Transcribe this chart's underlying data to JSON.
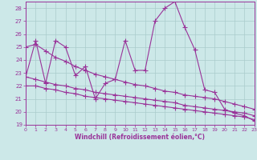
{
  "xlabel": "Windchill (Refroidissement éolien,°C)",
  "background_color": "#cce8e8",
  "grid_color": "#aacccc",
  "line_color": "#993399",
  "xlim": [
    0,
    23
  ],
  "ylim": [
    19,
    28.5
  ],
  "yticks": [
    19,
    20,
    21,
    22,
    23,
    24,
    25,
    26,
    27,
    28
  ],
  "xticks": [
    0,
    1,
    2,
    3,
    4,
    5,
    6,
    7,
    8,
    9,
    10,
    11,
    12,
    13,
    14,
    15,
    16,
    17,
    18,
    19,
    20,
    21,
    22,
    23
  ],
  "line1_x": [
    0,
    1,
    2,
    3,
    4,
    5,
    6,
    7,
    8,
    9,
    10,
    11,
    12,
    13,
    14,
    15,
    16,
    17,
    18,
    19,
    20,
    21,
    22,
    23
  ],
  "line1_y": [
    22.7,
    25.5,
    22.2,
    25.5,
    25.0,
    22.8,
    23.5,
    21.0,
    22.2,
    22.5,
    25.5,
    23.2,
    23.2,
    27.0,
    28.0,
    28.5,
    26.5,
    24.8,
    21.7,
    21.5,
    20.2,
    19.9,
    19.7,
    19.3
  ],
  "line2_x": [
    0,
    1,
    2,
    3,
    4,
    5,
    6,
    7,
    8,
    9,
    10,
    11,
    12,
    13,
    14,
    15,
    16,
    17,
    18,
    19,
    20,
    21,
    22,
    23
  ],
  "line2_y": [
    25.0,
    25.2,
    24.7,
    24.2,
    23.9,
    23.5,
    23.2,
    22.9,
    22.7,
    22.5,
    22.3,
    22.1,
    22.0,
    21.8,
    21.6,
    21.5,
    21.3,
    21.2,
    21.1,
    21.0,
    20.8,
    20.6,
    20.4,
    20.2
  ],
  "line3_x": [
    0,
    1,
    2,
    3,
    4,
    5,
    6,
    7,
    8,
    9,
    10,
    11,
    12,
    13,
    14,
    15,
    16,
    17,
    18,
    19,
    20,
    21,
    22,
    23
  ],
  "line3_y": [
    22.7,
    22.5,
    22.3,
    22.1,
    22.0,
    21.8,
    21.7,
    21.5,
    21.4,
    21.3,
    21.2,
    21.1,
    21.0,
    20.9,
    20.8,
    20.7,
    20.5,
    20.4,
    20.3,
    20.2,
    20.1,
    20.0,
    19.9,
    19.7
  ],
  "line4_x": [
    0,
    1,
    2,
    3,
    4,
    5,
    6,
    7,
    8,
    9,
    10,
    11,
    12,
    13,
    14,
    15,
    16,
    17,
    18,
    19,
    20,
    21,
    22,
    23
  ],
  "line4_y": [
    22.0,
    22.0,
    21.8,
    21.7,
    21.5,
    21.4,
    21.2,
    21.1,
    21.0,
    20.9,
    20.8,
    20.7,
    20.6,
    20.5,
    20.4,
    20.3,
    20.2,
    20.1,
    20.0,
    19.9,
    19.8,
    19.7,
    19.6,
    19.4
  ]
}
